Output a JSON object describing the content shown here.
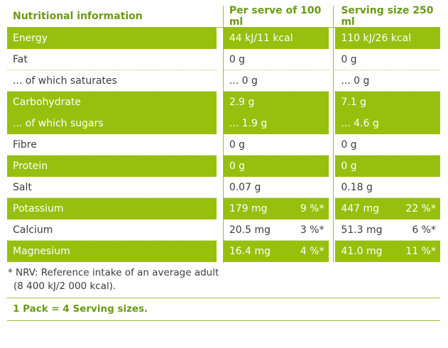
{
  "header": {
    "col1": "Nutritional information",
    "col2": "Per serve of 100 ml",
    "col3": "Serving size 250 ml"
  },
  "rows": [
    {
      "label": "Energy",
      "per100": "44 kJ/11 kcal",
      "per100_nrv": "",
      "serving": "110 kJ/26 kcal",
      "serving_nrv": ""
    },
    {
      "label": "Fat",
      "per100": "0 g",
      "per100_nrv": "",
      "serving": "0 g",
      "serving_nrv": ""
    },
    {
      "label": "... of which saturates",
      "per100": "... 0 g",
      "per100_nrv": "",
      "serving": "... 0 g",
      "serving_nrv": ""
    },
    {
      "label": "Carbohydrate",
      "per100": "2.9 g",
      "per100_nrv": "",
      "serving": "7.1 g",
      "serving_nrv": ""
    },
    {
      "label": "... of which sugars",
      "per100": "... 1.9 g",
      "per100_nrv": "",
      "serving": "... 4.6 g",
      "serving_nrv": ""
    },
    {
      "label": "Fibre",
      "per100": "0 g",
      "per100_nrv": "",
      "serving": "0 g",
      "serving_nrv": ""
    },
    {
      "label": "Protein",
      "per100": "0 g",
      "per100_nrv": "",
      "serving": "0 g",
      "serving_nrv": ""
    },
    {
      "label": "Salt",
      "per100": "0.07 g",
      "per100_nrv": "",
      "serving": "0.18 g",
      "serving_nrv": ""
    },
    {
      "label": "Potassium",
      "per100": "179 mg",
      "per100_nrv": "9 %*",
      "serving": "447 mg",
      "serving_nrv": "22 %*"
    },
    {
      "label": "Calcium",
      "per100": "20.5 mg",
      "per100_nrv": "3 %*",
      "serving": "51.3 mg",
      "serving_nrv": "6 %*"
    },
    {
      "label": "Magnesium",
      "per100": "16.4 mg",
      "per100_nrv": "4 %*",
      "serving": "41.0 mg",
      "serving_nrv": "11 %*"
    }
  ],
  "footnote_line1": "* NRV: Reference intake of an average adult",
  "footnote_line2": "(8 400 kJ/2 000 kcal).",
  "pack_note": "1 Pack = 4 Serving sizes.",
  "colors": {
    "accent": "#97bf0d",
    "header_text": "#6a9a12",
    "text": "#3b3b3b"
  }
}
